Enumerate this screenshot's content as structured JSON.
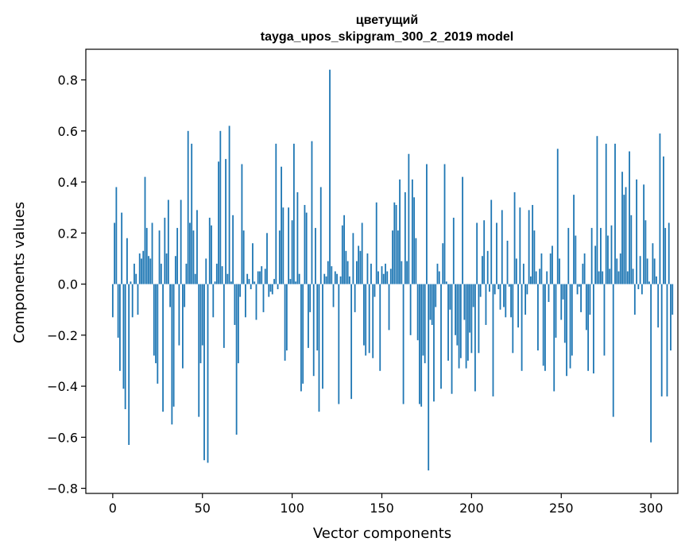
{
  "chart_data": {
    "type": "bar",
    "title": [
      "цветущий",
      "tayga_upos_skipgram_300_2_2019 model"
    ],
    "xlabel": "Vector components",
    "ylabel": "Components values",
    "xlim": [
      -15,
      315
    ],
    "ylim": [
      -0.82,
      0.92
    ],
    "x_ticks": [
      0,
      50,
      100,
      150,
      200,
      250,
      300
    ],
    "y_ticks": [
      -0.8,
      -0.6,
      -0.4,
      -0.2,
      0.0,
      0.2,
      0.4,
      0.6,
      0.8
    ],
    "x_tick_labels": [
      "0",
      "50",
      "100",
      "150",
      "200",
      "250",
      "300"
    ],
    "y_tick_labels": [
      "−0.8",
      "−0.6",
      "−0.4",
      "−0.2",
      "0.0",
      "0.2",
      "0.4",
      "0.6",
      "0.8"
    ],
    "bar_color": "#1f77b4",
    "values": [
      -0.13,
      0.24,
      0.38,
      -0.21,
      -0.34,
      0.28,
      -0.41,
      -0.49,
      0.18,
      -0.63,
      0.01,
      -0.13,
      0.08,
      0.04,
      -0.12,
      0.12,
      0.1,
      0.13,
      0.42,
      0.22,
      0.11,
      0.1,
      0.24,
      -0.28,
      -0.31,
      -0.39,
      0.21,
      0.08,
      -0.5,
      0.26,
      0.12,
      0.33,
      -0.09,
      -0.55,
      -0.48,
      0.11,
      0.22,
      -0.24,
      0.33,
      -0.33,
      -0.09,
      0.08,
      0.6,
      0.24,
      0.55,
      0.21,
      0.04,
      0.29,
      -0.52,
      -0.31,
      -0.24,
      -0.69,
      0.1,
      -0.7,
      0.26,
      0.23,
      -0.13,
      0.01,
      0.08,
      0.48,
      0.6,
      0.07,
      -0.25,
      0.49,
      0.04,
      0.62,
      0.01,
      0.27,
      -0.16,
      -0.59,
      -0.31,
      -0.05,
      0.47,
      0.21,
      -0.13,
      0.04,
      0.02,
      -0.02,
      0.16,
      0.01,
      -0.14,
      0.05,
      0.05,
      0.07,
      -0.11,
      0.06,
      0.2,
      -0.05,
      -0.03,
      -0.04,
      0.02,
      0.55,
      -0.02,
      0.21,
      0.46,
      0.3,
      -0.3,
      -0.26,
      0.3,
      0.02,
      0.25,
      0.55,
      0.01,
      0.36,
      0.04,
      -0.42,
      -0.39,
      0.31,
      0.28,
      -0.25,
      -0.11,
      0.56,
      -0.36,
      0.22,
      -0.26,
      -0.5,
      0.38,
      -0.41,
      0.04,
      0.03,
      0.09,
      0.84,
      0.07,
      -0.09,
      0.05,
      0.04,
      -0.47,
      0.03,
      0.23,
      0.27,
      0.13,
      0.09,
      0.03,
      -0.45,
      0.2,
      -0.11,
      0.09,
      0.15,
      0.13,
      0.24,
      -0.24,
      -0.28,
      0.12,
      -0.27,
      0.08,
      -0.29,
      -0.05,
      0.32,
      0.05,
      -0.34,
      0.07,
      0.04,
      0.08,
      0.05,
      -0.18,
      0.06,
      0.21,
      0.32,
      0.31,
      0.21,
      0.41,
      0.09,
      -0.47,
      0.36,
      0.09,
      0.51,
      -0.2,
      0.41,
      0.34,
      0.18,
      -0.22,
      -0.47,
      -0.48,
      -0.28,
      -0.31,
      0.47,
      -0.73,
      -0.14,
      -0.16,
      -0.46,
      -0.09,
      0.08,
      0.05,
      -0.41,
      0.16,
      0.47,
      0.01,
      -0.3,
      -0.1,
      -0.43,
      0.26,
      -0.2,
      -0.24,
      -0.33,
      -0.29,
      0.42,
      -0.14,
      -0.33,
      -0.3,
      -0.19,
      -0.27,
      -0.09,
      -0.42,
      0.24,
      -0.27,
      -0.05,
      0.11,
      0.25,
      -0.16,
      0.13,
      -0.03,
      0.33,
      -0.44,
      -0.04,
      0.24,
      -0.02,
      -0.1,
      0.29,
      -0.09,
      -0.13,
      0.17,
      -0.01,
      -0.13,
      -0.27,
      0.36,
      0.1,
      -0.17,
      0.3,
      -0.34,
      0.08,
      -0.12,
      -0.04,
      0.29,
      0.03,
      0.31,
      0.21,
      0.05,
      -0.26,
      0.06,
      0.12,
      -0.32,
      -0.34,
      0.05,
      -0.07,
      0.12,
      0.15,
      -0.42,
      -0.21,
      0.53,
      0.1,
      -0.14,
      -0.06,
      -0.23,
      -0.36,
      0.22,
      -0.33,
      -0.28,
      0.35,
      0.19,
      -0.04,
      -0.01,
      -0.11,
      0.08,
      0.12,
      -0.18,
      -0.34,
      -0.12,
      0.22,
      -0.35,
      0.15,
      0.58,
      0.05,
      0.22,
      0.05,
      -0.28,
      0.55,
      0.19,
      0.06,
      0.23,
      -0.52,
      0.55,
      0.1,
      0.05,
      0.12,
      0.44,
      0.35,
      0.38,
      0.05,
      0.52,
      0.27,
      0.06,
      -0.12,
      0.41,
      -0.02,
      0.11,
      -0.04,
      0.39,
      0.25,
      0.1,
      0.01,
      -0.62,
      0.16,
      0.1,
      0.03,
      -0.17,
      0.59,
      -0.44,
      0.5,
      0.22,
      -0.44,
      0.24,
      -0.26,
      -0.12
    ]
  }
}
